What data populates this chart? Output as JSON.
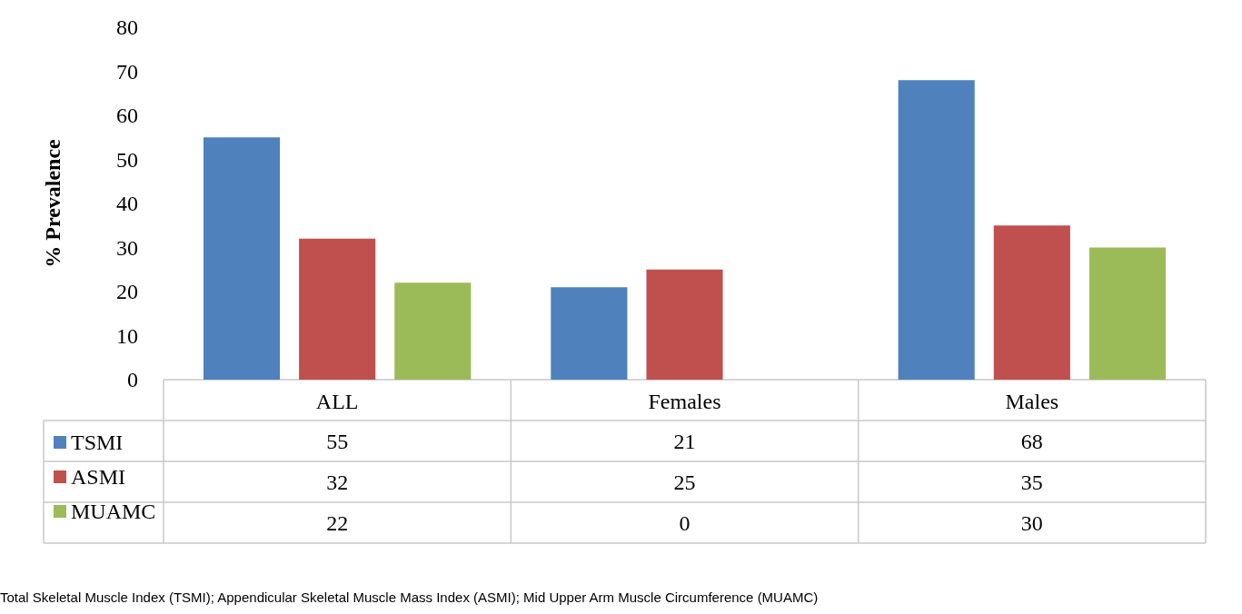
{
  "chart_data": {
    "type": "bar",
    "ylabel": "% Prevalence",
    "categories": [
      "ALL",
      "Females",
      "Males"
    ],
    "series": [
      {
        "name": "TSMI",
        "color": "#4f81bd",
        "values": [
          55,
          21,
          68
        ]
      },
      {
        "name": "ASMI",
        "color": "#c0504d",
        "values": [
          32,
          25,
          35
        ]
      },
      {
        "name": "MUAMC",
        "color": "#9bbb59",
        "values": [
          22,
          0,
          30
        ]
      }
    ],
    "ylim": [
      0,
      80
    ],
    "yticks": [
      0,
      10,
      20,
      30,
      40,
      50,
      60,
      70,
      80
    ],
    "grid": false,
    "legend": "bottom left",
    "data_labels": true,
    "annotations": [
      "Total Skeletal Muscle Index (TSMI); Appendicular Skeletal Muscle Mass Index (ASMI); Mid Upper Arm Muscle Circumference (MUAMC)"
    ]
  }
}
